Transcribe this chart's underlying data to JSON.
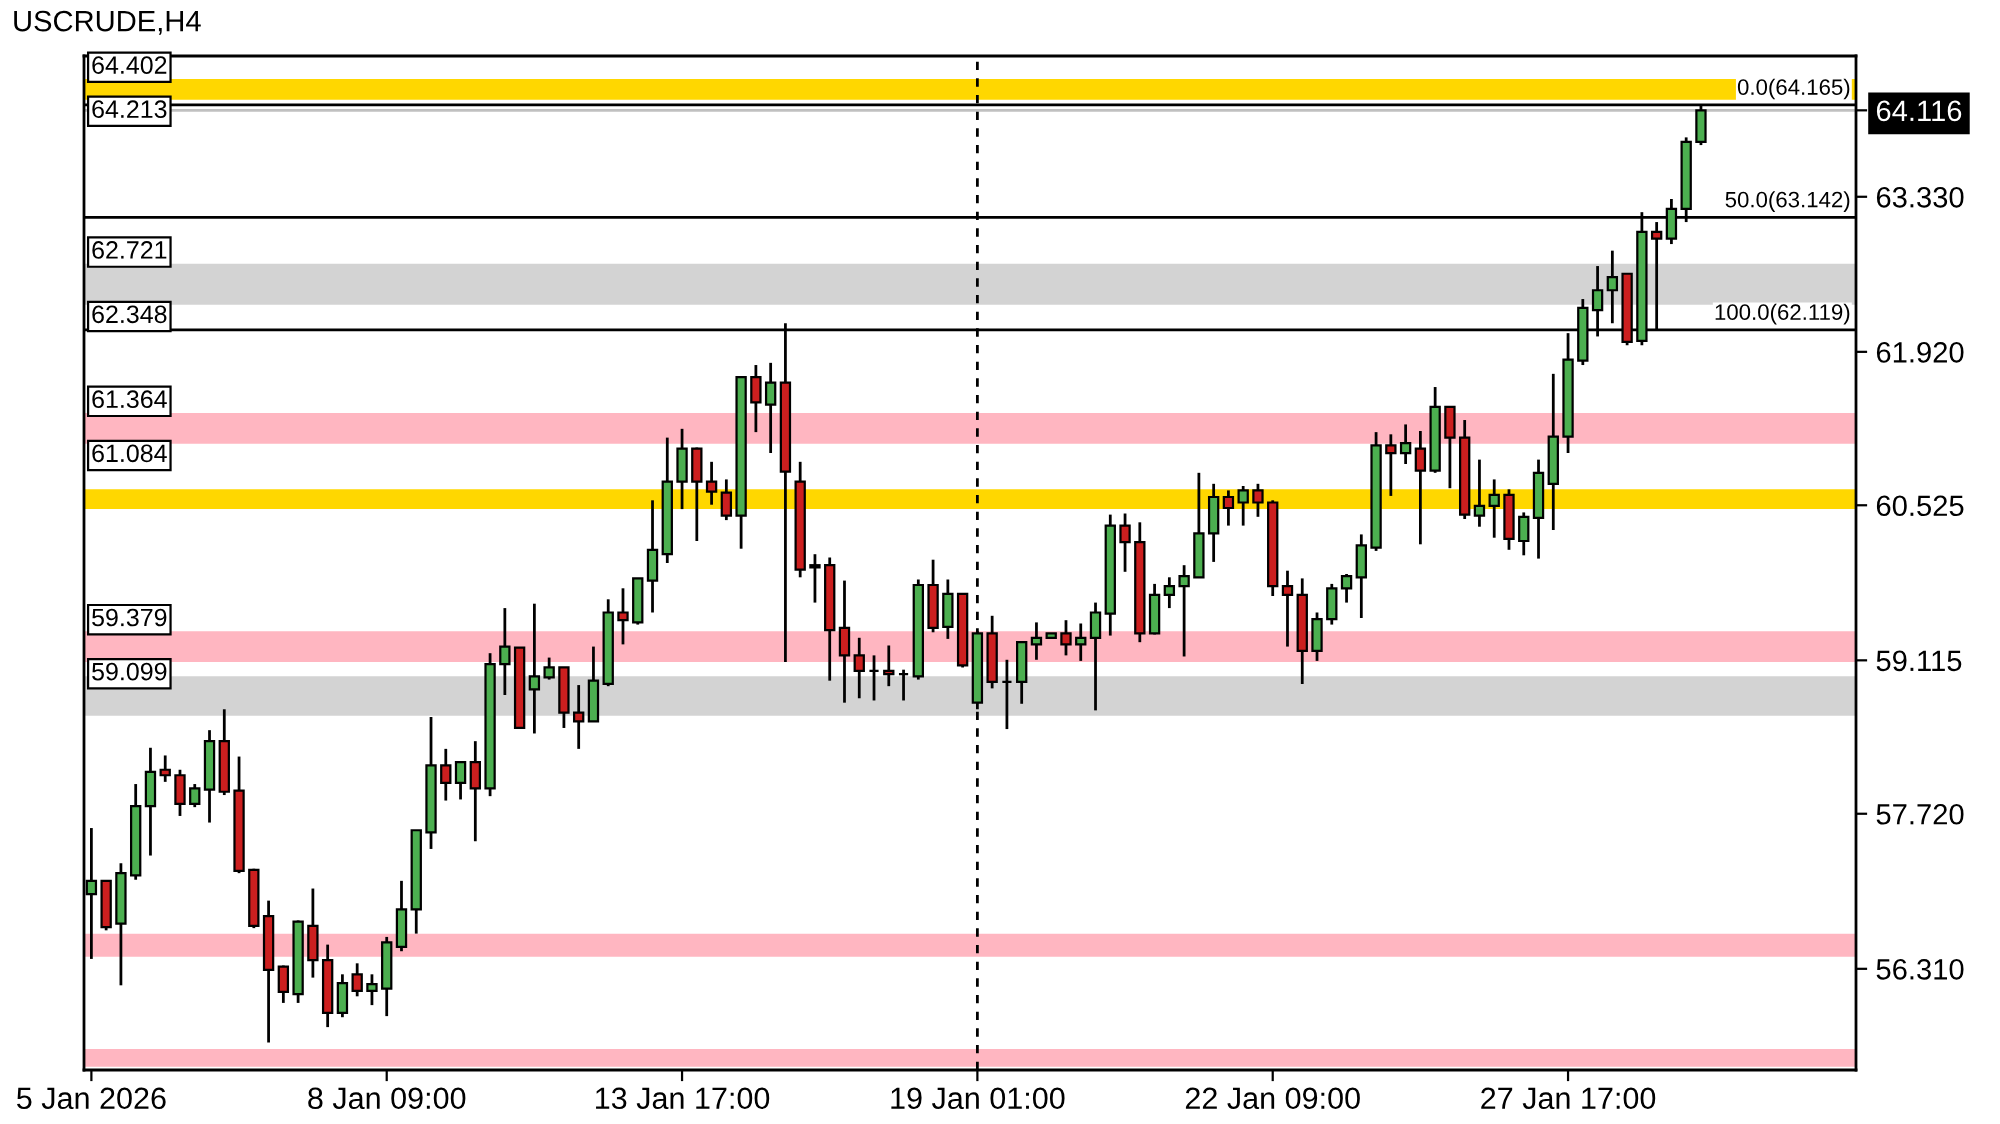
{
  "chart_data": {
    "type": "candlestick",
    "title": "USCRUDE,H4",
    "categories": [
      "5 Jan 2026",
      null,
      null,
      null,
      null,
      null,
      null,
      null,
      null,
      null,
      null,
      null,
      null,
      null,
      null,
      null,
      null,
      null,
      null,
      null,
      "8 Jan 09:00",
      null,
      null,
      null,
      null,
      null,
      null,
      null,
      null,
      null,
      null,
      null,
      null,
      null,
      null,
      null,
      null,
      null,
      null,
      null,
      "13 Jan 17:00",
      null,
      null,
      null,
      null,
      null,
      null,
      null,
      null,
      null,
      null,
      null,
      null,
      null,
      null,
      null,
      null,
      null,
      null,
      null,
      "19 Jan 01:00",
      null,
      null,
      null,
      null,
      null,
      null,
      null,
      null,
      null,
      null,
      null,
      null,
      null,
      null,
      null,
      null,
      null,
      null,
      null,
      "22 Jan 09:00",
      null,
      null,
      null,
      null,
      null,
      null,
      null,
      null,
      null,
      null,
      null,
      null,
      null,
      null,
      null,
      null,
      null,
      null,
      null,
      "27 Jan 17:00",
      null,
      null,
      null,
      null,
      null,
      null,
      null,
      null,
      null,
      null,
      null,
      null,
      null,
      null,
      null,
      null,
      null,
      null,
      null
    ],
    "ohlc": [
      [
        56.99,
        57.59,
        56.4,
        57.11
      ],
      [
        57.11,
        57.11,
        56.66,
        56.69
      ],
      [
        56.72,
        57.27,
        56.16,
        57.18
      ],
      [
        57.16,
        57.99,
        57.12,
        57.79
      ],
      [
        57.79,
        58.32,
        57.34,
        58.1
      ],
      [
        58.12,
        58.25,
        58.01,
        58.07
      ],
      [
        58.07,
        58.12,
        57.7,
        57.81
      ],
      [
        57.81,
        57.99,
        57.78,
        57.95
      ],
      [
        57.94,
        58.48,
        57.64,
        58.38
      ],
      [
        58.38,
        58.67,
        57.89,
        57.92
      ],
      [
        57.93,
        58.24,
        57.18,
        57.2
      ],
      [
        57.21,
        57.22,
        56.68,
        56.7
      ],
      [
        56.79,
        56.93,
        55.64,
        56.3
      ],
      [
        56.33,
        56.34,
        56.0,
        56.1
      ],
      [
        56.08,
        56.75,
        56.0,
        56.74
      ],
      [
        56.7,
        57.04,
        56.23,
        56.39
      ],
      [
        56.39,
        56.53,
        55.78,
        55.91
      ],
      [
        55.91,
        56.26,
        55.87,
        56.18
      ],
      [
        56.26,
        56.36,
        56.06,
        56.11
      ],
      [
        56.11,
        56.26,
        55.98,
        56.17
      ],
      [
        56.13,
        56.6,
        55.88,
        56.55
      ],
      [
        56.51,
        57.11,
        56.47,
        56.85
      ],
      [
        56.85,
        57.57,
        56.63,
        57.57
      ],
      [
        57.55,
        58.6,
        57.4,
        58.16
      ],
      [
        58.16,
        58.31,
        57.84,
        58.0
      ],
      [
        58.0,
        58.19,
        57.85,
        58.19
      ],
      [
        58.19,
        58.38,
        57.47,
        57.95
      ],
      [
        57.95,
        59.18,
        57.88,
        59.08
      ],
      [
        59.08,
        59.59,
        58.8,
        59.24
      ],
      [
        59.23,
        59.23,
        58.5,
        58.5
      ],
      [
        58.85,
        59.63,
        58.45,
        58.97
      ],
      [
        58.96,
        59.14,
        58.94,
        59.05
      ],
      [
        59.05,
        59.05,
        58.5,
        58.64
      ],
      [
        58.64,
        58.89,
        58.31,
        58.56
      ],
      [
        58.56,
        59.24,
        58.56,
        58.93
      ],
      [
        58.9,
        59.67,
        58.88,
        59.55
      ],
      [
        59.55,
        59.77,
        59.26,
        59.48
      ],
      [
        59.46,
        59.86,
        59.44,
        59.86
      ],
      [
        59.84,
        60.57,
        59.55,
        60.12
      ],
      [
        60.08,
        61.14,
        60.0,
        60.74
      ],
      [
        60.74,
        61.22,
        60.49,
        61.04
      ],
      [
        61.04,
        61.05,
        60.2,
        60.74
      ],
      [
        60.74,
        60.92,
        60.53,
        60.65
      ],
      [
        60.64,
        60.76,
        60.39,
        60.43
      ],
      [
        60.43,
        61.69,
        60.13,
        61.69
      ],
      [
        61.69,
        61.8,
        61.19,
        61.46
      ],
      [
        61.44,
        61.82,
        61.0,
        61.64
      ],
      [
        61.64,
        62.18,
        59.1,
        60.83
      ],
      [
        60.74,
        60.92,
        59.87,
        59.94
      ],
      [
        59.96,
        60.08,
        59.64,
        59.98
      ],
      [
        59.98,
        60.05,
        58.93,
        59.39
      ],
      [
        59.41,
        59.84,
        58.73,
        59.16
      ],
      [
        59.16,
        59.32,
        58.77,
        59.02
      ],
      [
        59.02,
        59.16,
        58.75,
        59.02
      ],
      [
        59.02,
        59.25,
        58.88,
        58.99
      ],
      [
        58.99,
        59.03,
        58.75,
        58.99
      ],
      [
        58.97,
        59.85,
        58.94,
        59.8
      ],
      [
        59.8,
        60.03,
        59.37,
        59.41
      ],
      [
        59.42,
        59.85,
        59.31,
        59.72
      ],
      [
        59.72,
        59.72,
        59.05,
        59.07
      ],
      [
        58.73,
        59.38,
        58.67,
        59.36
      ],
      [
        59.36,
        59.52,
        58.86,
        58.92
      ],
      [
        58.92,
        59.12,
        58.49,
        58.92
      ],
      [
        58.92,
        59.28,
        58.72,
        59.28
      ],
      [
        59.26,
        59.46,
        59.12,
        59.32
      ],
      [
        59.32,
        59.36,
        59.32,
        59.36
      ],
      [
        59.36,
        59.48,
        59.16,
        59.26
      ],
      [
        59.26,
        59.45,
        59.11,
        59.32
      ],
      [
        59.32,
        59.64,
        58.66,
        59.55
      ],
      [
        59.54,
        60.44,
        59.34,
        60.34
      ],
      [
        60.34,
        60.45,
        59.92,
        60.19
      ],
      [
        60.19,
        60.37,
        59.28,
        59.36
      ],
      [
        59.36,
        59.81,
        59.35,
        59.71
      ],
      [
        59.71,
        59.87,
        59.59,
        59.79
      ],
      [
        59.79,
        59.98,
        59.15,
        59.88
      ],
      [
        59.87,
        60.82,
        59.87,
        60.27
      ],
      [
        60.27,
        60.72,
        60.01,
        60.6
      ],
      [
        60.6,
        60.66,
        60.34,
        60.5
      ],
      [
        60.55,
        60.7,
        60.34,
        60.66
      ],
      [
        60.66,
        60.72,
        60.42,
        60.55
      ],
      [
        60.55,
        60.57,
        59.7,
        59.79
      ],
      [
        59.79,
        59.93,
        59.24,
        59.71
      ],
      [
        59.71,
        59.86,
        58.9,
        59.2
      ],
      [
        59.2,
        59.55,
        59.11,
        59.49
      ],
      [
        59.49,
        59.81,
        59.44,
        59.77
      ],
      [
        59.77,
        59.9,
        59.64,
        59.88
      ],
      [
        59.87,
        60.26,
        59.5,
        60.16
      ],
      [
        60.14,
        61.19,
        60.11,
        61.07
      ],
      [
        61.07,
        61.17,
        60.61,
        61.0
      ],
      [
        61.0,
        61.26,
        60.9,
        61.09
      ],
      [
        61.04,
        61.2,
        60.17,
        60.84
      ],
      [
        60.84,
        61.6,
        60.82,
        61.42
      ],
      [
        61.42,
        61.42,
        60.68,
        61.14
      ],
      [
        61.14,
        61.3,
        60.4,
        60.44
      ],
      [
        60.43,
        60.94,
        60.33,
        60.52
      ],
      [
        60.52,
        60.76,
        60.23,
        60.62
      ],
      [
        60.62,
        60.67,
        60.12,
        60.22
      ],
      [
        60.2,
        60.46,
        60.07,
        60.42
      ],
      [
        60.41,
        60.94,
        60.04,
        60.82
      ],
      [
        60.72,
        61.72,
        60.3,
        61.15
      ],
      [
        61.15,
        62.09,
        61.0,
        61.85
      ],
      [
        61.84,
        62.4,
        61.8,
        62.32
      ],
      [
        62.3,
        62.7,
        62.06,
        62.48
      ],
      [
        62.48,
        62.84,
        62.18,
        62.6
      ],
      [
        62.63,
        62.63,
        61.98,
        62.01
      ],
      [
        62.02,
        63.19,
        61.98,
        63.01
      ],
      [
        63.01,
        63.1,
        62.12,
        62.95
      ],
      [
        62.95,
        63.31,
        62.9,
        63.22
      ],
      [
        63.22,
        63.87,
        63.1,
        63.83
      ],
      [
        63.83,
        64.165,
        63.8,
        64.116
      ],
      null,
      null,
      null,
      null,
      null,
      null,
      null,
      null,
      null,
      null
    ],
    "colors": [
      "#4caf50",
      "#cc1f1f",
      "#4caf50",
      "#4caf50",
      "#4caf50",
      "#cc1f1f",
      "#cc1f1f",
      "#4caf50",
      "#4caf50",
      "#cc1f1f",
      "#cc1f1f",
      "#cc1f1f",
      "#cc1f1f",
      "#cc1f1f",
      "#4caf50",
      "#cc1f1f",
      "#cc1f1f",
      "#4caf50",
      "#cc1f1f",
      "#4caf50",
      "#4caf50",
      "#4caf50",
      "#4caf50",
      "#4caf50",
      "#cc1f1f",
      "#4caf50",
      "#cc1f1f",
      "#4caf50",
      "#4caf50",
      "#cc1f1f",
      "#4caf50",
      "#4caf50",
      "#cc1f1f",
      "#cc1f1f",
      "#4caf50",
      "#4caf50",
      "#cc1f1f",
      "#4caf50",
      "#4caf50",
      "#4caf50",
      "#4caf50",
      "#cc1f1f",
      "#cc1f1f",
      "#cc1f1f",
      "#4caf50",
      "#cc1f1f",
      "#4caf50",
      "#cc1f1f",
      "#cc1f1f",
      "#4caf50",
      "#cc1f1f",
      "#cc1f1f",
      "#cc1f1f",
      "#000000",
      "#cc1f1f",
      "#000000",
      "#4caf50",
      "#cc1f1f",
      "#4caf50",
      "#cc1f1f",
      "#4caf50",
      "#cc1f1f",
      "#000000",
      "#4caf50",
      "#4caf50",
      "#4caf50",
      "#cc1f1f",
      "#4caf50",
      "#4caf50",
      "#4caf50",
      "#cc1f1f",
      "#cc1f1f",
      "#4caf50",
      "#4caf50",
      "#4caf50",
      "#4caf50",
      "#4caf50",
      "#cc1f1f",
      "#4caf50",
      "#cc1f1f",
      "#cc1f1f",
      "#cc1f1f",
      "#cc1f1f",
      "#4caf50",
      "#4caf50",
      "#4caf50",
      "#4caf50",
      "#4caf50",
      "#cc1f1f",
      "#4caf50",
      "#cc1f1f",
      "#4caf50",
      "#cc1f1f",
      "#cc1f1f",
      "#4caf50",
      "#4caf50",
      "#cc1f1f",
      "#4caf50",
      "#4caf50",
      "#4caf50",
      "#4caf50",
      "#4caf50",
      "#4caf50",
      "#4caf50",
      "#cc1f1f",
      "#4caf50",
      "#cc1f1f",
      "#4caf50",
      "#4caf50",
      "#4caf50",
      null,
      null,
      null,
      null,
      null,
      null,
      null,
      null,
      null,
      null
    ],
    "ylim": [
      55.39,
      64.61
    ],
    "yticks": [
      {
        "value": 63.33,
        "label": "63.330"
      },
      {
        "value": 61.92,
        "label": "61.920"
      },
      60.525,
      59.115,
      {
        "value": 57.72,
        "label": "57.720"
      },
      {
        "value": 56.31,
        "label": "56.310"
      },
      64.116
    ],
    "bands": [
      {
        "axis": "y",
        "from": 64.213,
        "to": 64.402,
        "color": "#ffd700"
      },
      {
        "axis": "y",
        "from": 62.348,
        "to": 62.721,
        "color": "#d3d3d3"
      },
      {
        "axis": "y",
        "from": 61.084,
        "to": 61.364,
        "color": "#ffb6c1"
      },
      {
        "axis": "y",
        "from": 60.49,
        "to": 60.67,
        "color": "#ffd700"
      },
      {
        "axis": "y",
        "from": 59.099,
        "to": 59.379,
        "color": "#ffb6c1"
      },
      {
        "axis": "y",
        "from": 58.61,
        "to": 58.97,
        "color": "#d3d3d3"
      },
      {
        "axis": "y",
        "from": 56.42,
        "to": 56.63,
        "color": "#ffb6c1"
      },
      {
        "axis": "y",
        "from": 55.42,
        "to": 55.58,
        "color": "#ffb6c1"
      }
    ],
    "ref_lines": [
      {
        "axis": "y",
        "value": 64.116,
        "color": "#c0c0c0"
      },
      {
        "axis": "y",
        "value": 64.165,
        "label": "0.0(64.165)",
        "color": "#000000"
      },
      {
        "axis": "y",
        "value": 63.142,
        "label": "50.0(63.142)",
        "color": "#000000"
      },
      {
        "axis": "y",
        "value": 62.119,
        "label": "100.0(62.119)",
        "color": "#000000"
      },
      {
        "axis": "x",
        "value": "19 Jan 01:00",
        "color": "#000000",
        "line_style": "dashed"
      }
    ],
    "annotations": [
      {
        "text": "64.402",
        "y": 64.402
      },
      {
        "text": "64.213",
        "y": 64.213
      },
      {
        "text": "62.721",
        "y": 62.721
      },
      {
        "text": "62.348",
        "y": 62.348
      },
      {
        "text": "61.364",
        "y": 61.364
      },
      {
        "text": "61.084",
        "y": 61.084
      },
      {
        "text": "59.379",
        "y": 59.379
      },
      {
        "text": "59.099",
        "y": 59.099
      }
    ]
  }
}
